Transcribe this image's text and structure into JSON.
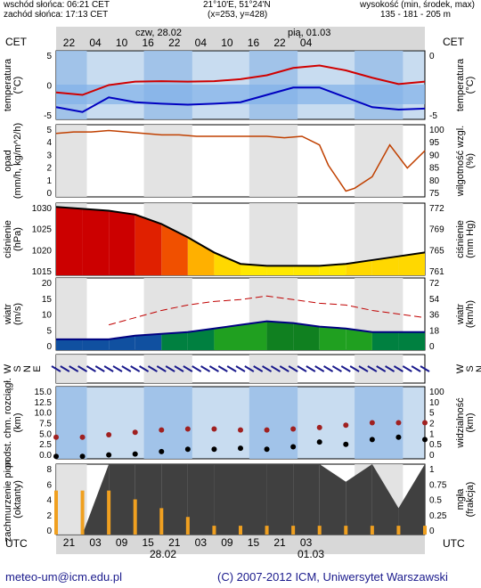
{
  "header": {
    "sunrise": "wschód słońca: 06:21 CET",
    "sunset": "zachód słońca: 17:13 CET",
    "coords": "21°10'E, 51°24'N",
    "grid": "(x=253, y=428)",
    "height_label": "wysokość (min, środek, max)",
    "height_values": "135 - 181 - 205 m"
  },
  "timebar": {
    "left_label": "CET",
    "right_label": "CET",
    "day1": "czw, 28.02",
    "day2": "pią, 01.03",
    "hours": [
      "22",
      "04",
      "10",
      "16",
      "22",
      "04",
      "10",
      "16",
      "22",
      "04"
    ]
  },
  "utcbar": {
    "left_label": "UTC",
    "right_label": "UTC",
    "hours": [
      "21",
      "03",
      "09",
      "15",
      "21",
      "03",
      "09",
      "15",
      "21",
      "03"
    ],
    "date1": "28.02",
    "date2": "01.03"
  },
  "panels": {
    "temperature": {
      "left": "temperatura\n(°C)",
      "right": "temperatura\n(°C)",
      "ticks": [
        "5",
        "0",
        "-5"
      ],
      "rticks": [
        "0",
        "-5"
      ]
    },
    "precip": {
      "left": "opad\n(mm/h, kg/m^2/h)",
      "right": "wilgotność wzgl.\n(%)",
      "ticks": [
        "5",
        "4",
        "3",
        "2",
        "1",
        "0"
      ],
      "rticks": [
        "100",
        "95",
        "90",
        "85",
        "80",
        "75"
      ]
    },
    "pressure": {
      "left": "ciśnienie\n(hPa)",
      "right": "ciśnienie\n(mm Hg)",
      "ticks": [
        "1030",
        "1025",
        "1020",
        "1015"
      ],
      "rticks": [
        "772",
        "769",
        "765",
        "761"
      ]
    },
    "wind": {
      "left": "wiatr\n(m/s)",
      "right": "wiatr\n(km/h)",
      "ticks": [
        "20",
        "15",
        "10",
        "5",
        "0"
      ],
      "rticks": [
        "72",
        "54",
        "36",
        "18",
        "0"
      ]
    },
    "winddir": {
      "left": "W\nS\nN\nE",
      "right": "W\nS\nN\nE"
    },
    "cloudbase": {
      "left": "podst. chm. rozciągł.\n(km)",
      "right": "widzialność\n(km)",
      "ticks": [
        "15.0",
        "12.5",
        "10.0",
        "7.5",
        "5.0",
        "2.5",
        "0.0"
      ],
      "rticks": [
        "100",
        "10",
        "5",
        "2",
        "1",
        "0.5",
        "0"
      ]
    },
    "cloudcover": {
      "left": "zachmurzenie pion.\n(oktanty)",
      "right": "mgła\n(frakcja)",
      "ticks": [
        "8",
        "6",
        "4",
        "2",
        "0"
      ],
      "rticks": [
        "1",
        "0.75",
        "0.5",
        "0.25",
        "0"
      ]
    }
  },
  "footer": {
    "email": "meteo-um@icm.edu.pl",
    "copyright": "(C) 2007-2012 ICM, Uniwersytet Warszawski"
  },
  "chart_data": [
    {
      "type": "line",
      "name_key": "temperature",
      "ylim": [
        -8,
        6
      ],
      "series": [
        {
          "name": "",
          "color": "#d00000",
          "x": [
            0,
            6,
            12,
            18,
            24,
            30,
            36,
            42,
            48,
            54,
            60,
            66,
            72,
            78,
            84
          ],
          "values": [
            -2.5,
            -3,
            -1,
            -0.3,
            -0.2,
            -0.3,
            -0.2,
            0.2,
            1.0,
            2.5,
            3.0,
            2.0,
            0.5,
            -0.8,
            -0.3
          ]
        },
        {
          "name": "",
          "color": "#0000c0",
          "x": [
            0,
            6,
            12,
            18,
            24,
            30,
            36,
            42,
            48,
            54,
            60,
            66,
            72,
            78,
            84
          ],
          "values": [
            -5.5,
            -6.5,
            -3.5,
            -4.5,
            -4.8,
            -5.0,
            -4.8,
            -4.5,
            -3.0,
            -1.5,
            -1.5,
            -3.5,
            -5.5,
            -6.0,
            -5.8
          ]
        }
      ]
    },
    {
      "type": "line",
      "name_key": "humidity",
      "ylim": [
        75,
        100
      ],
      "series": [
        {
          "name": "",
          "color": "#c04000",
          "x": [
            0,
            4,
            8,
            12,
            16,
            20,
            24,
            28,
            32,
            36,
            40,
            44,
            48,
            52,
            56,
            60,
            62,
            66,
            68,
            72,
            76,
            80,
            84
          ],
          "values": [
            97,
            97.5,
            97.5,
            98,
            97.5,
            97,
            96.5,
            96.5,
            96,
            96,
            96,
            96,
            96,
            95.5,
            96,
            93,
            86,
            77,
            78,
            82,
            93,
            85,
            91
          ]
        }
      ]
    },
    {
      "type": "area",
      "name_key": "pressure",
      "ylim": [
        1012,
        1031
      ],
      "series": [
        {
          "name": "",
          "color": "#000000",
          "x": [
            0,
            6,
            12,
            18,
            24,
            30,
            36,
            42,
            48,
            54,
            60,
            66,
            72,
            78,
            84
          ],
          "values": [
            1030,
            1029.5,
            1029,
            1028,
            1025.5,
            1022,
            1018,
            1015,
            1014.5,
            1014.5,
            1014.5,
            1015,
            1016,
            1017,
            1018
          ]
        }
      ]
    },
    {
      "type": "line",
      "name_key": "wind",
      "ylim": [
        0,
        20
      ],
      "series": [
        {
          "name": "",
          "color": "#000080",
          "x": [
            0,
            6,
            12,
            18,
            24,
            30,
            36,
            42,
            48,
            54,
            60,
            66,
            72,
            78,
            84
          ],
          "values": [
            3,
            3,
            3,
            4,
            4.5,
            5,
            6,
            7,
            8,
            7.5,
            6.5,
            6,
            5,
            5,
            5
          ]
        },
        {
          "name": "",
          "color": "#c00000",
          "x": [
            12,
            18,
            24,
            30,
            36,
            42,
            48,
            54,
            60,
            66,
            72,
            78,
            84
          ],
          "values": [
            7,
            9,
            11,
            12.5,
            13.5,
            14,
            15,
            14,
            13,
            12.5,
            11,
            10,
            9
          ]
        }
      ]
    },
    {
      "type": "scatter",
      "name_key": "cloudbase",
      "ylim": [
        0,
        15
      ],
      "series": [
        {
          "name": "",
          "color": "#000000",
          "x": [
            0,
            6,
            12,
            18,
            24,
            30,
            36,
            42,
            48,
            54,
            60,
            66,
            72,
            78,
            84
          ],
          "values": [
            0.5,
            0.5,
            0.8,
            1.0,
            1.5,
            2.0,
            2.0,
            2.2,
            2.0,
            2.5,
            3.5,
            3.0,
            4.0,
            4.5,
            4.0
          ]
        },
        {
          "name": "",
          "color": "#a02020",
          "x": [
            0,
            6,
            12,
            18,
            24,
            30,
            36,
            42,
            48,
            54,
            60,
            66,
            72,
            78,
            84
          ],
          "values": [
            4.5,
            4.5,
            5.0,
            5.5,
            6.0,
            6.2,
            6.2,
            6.0,
            6.0,
            6.2,
            6.5,
            7.0,
            7.5,
            7.5,
            7.5
          ]
        }
      ]
    },
    {
      "type": "bar",
      "name_key": "cloudcover",
      "ylim": [
        0,
        8
      ],
      "series": [
        {
          "name": "",
          "color": "#404040",
          "x": [
            0,
            6,
            12,
            18,
            24,
            30,
            36,
            42,
            48,
            54,
            60,
            66,
            72,
            78,
            84
          ],
          "values": [
            0,
            0,
            8,
            8,
            8,
            8,
            8,
            8,
            8,
            8,
            8,
            6,
            8,
            3,
            8
          ]
        },
        {
          "name": "",
          "color": "#f0a020",
          "x": [
            0,
            6,
            12,
            18,
            24,
            30,
            36,
            42,
            48,
            54,
            60,
            66,
            72,
            78,
            84
          ],
          "values": [
            5,
            5,
            5,
            4,
            3,
            2,
            1,
            1,
            1,
            1,
            1,
            1,
            1,
            1,
            1
          ]
        }
      ]
    }
  ]
}
